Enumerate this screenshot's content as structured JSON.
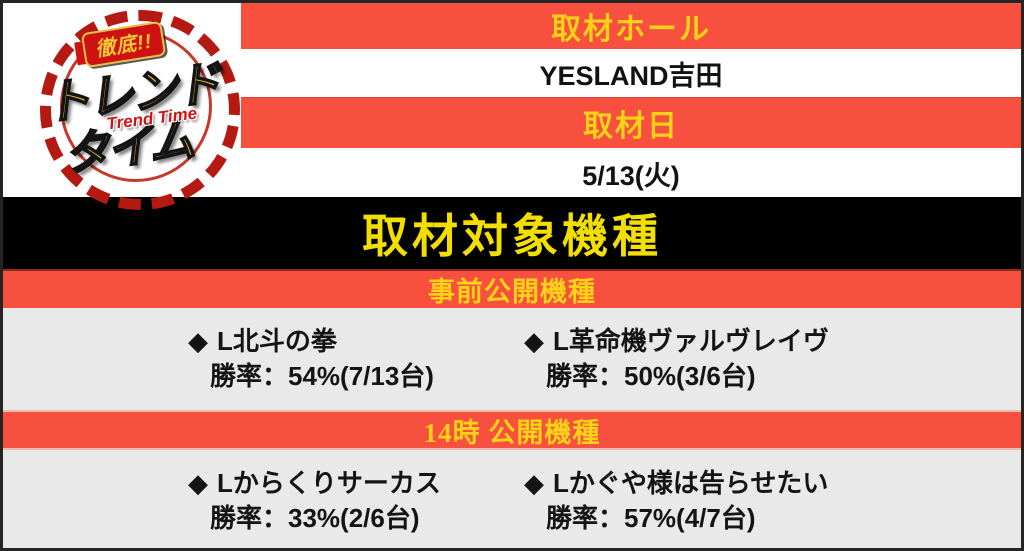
{
  "colors": {
    "banner_red": "#F7503F",
    "banner_text_yellow": "#FFD117",
    "section_title_yellow": "#F2DF00",
    "cell_gray": "#E9E9E9",
    "section_title_bg": "#000000",
    "body_text": "#141414",
    "logo_ring_red": "#B51A12",
    "logo_gold": "#F3C12D"
  },
  "logo": {
    "badge_top": "徹底!!",
    "title_line1": "トレンド",
    "subtitle_en": "Trend Time",
    "title_line2": "タイム"
  },
  "header": {
    "hall_label": "取材ホール",
    "hall_name": "YESLAND吉田",
    "date_label": "取材日",
    "date_value": "5/13(火)"
  },
  "section_title": "取材対象機種",
  "groups": [
    {
      "banner": "事前公開機種",
      "machines": [
        {
          "bullet": "◆",
          "name": "L北斗の拳",
          "win_rate": "勝率：54%(7/13台)"
        },
        {
          "bullet": "◆",
          "name": "L革命機ヴァルヴレイヴ",
          "win_rate": "勝率：50%(3/6台)"
        }
      ]
    },
    {
      "banner": "14時 公開機種",
      "machines": [
        {
          "bullet": "◆",
          "name": "Lからくりサーカス",
          "win_rate": "勝率：33%(2/6台)"
        },
        {
          "bullet": "◆",
          "name": "Lかぐや様は告らせたい",
          "win_rate": "勝率：57%(4/7台)"
        }
      ]
    }
  ]
}
